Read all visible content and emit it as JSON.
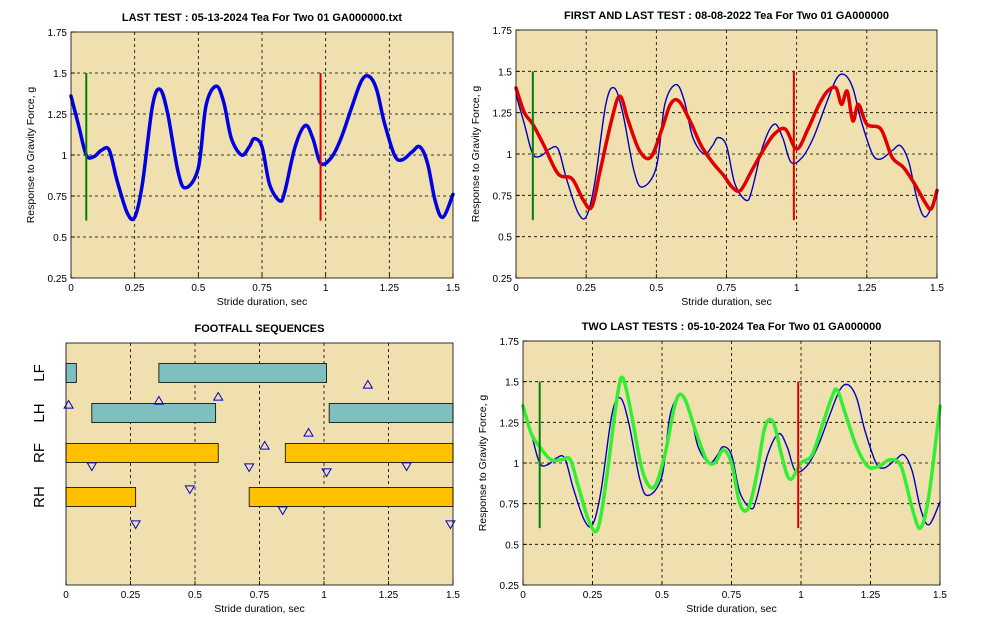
{
  "chart_data": [
    {
      "id": "last",
      "type": "line",
      "title": "LAST TEST : 05-13-2024 Tea For Two 01 GA000000.txt",
      "xlabel": "Stride duration, sec",
      "ylabel": "Response to Gravity Force, g",
      "xlim": [
        0,
        1.5
      ],
      "ylim": [
        0.25,
        1.75
      ],
      "xticks": [
        "0",
        "0.25",
        "0.5",
        "0.75",
        "1",
        "1.25",
        "1.5"
      ],
      "yticks": [
        "0.25",
        "0.5",
        "0.75",
        "1",
        "1.25",
        "1.5",
        "1.75"
      ],
      "grid": true,
      "markers": [
        {
          "x": 0.06,
          "y0": 0.6,
          "y1": 1.5,
          "color": "#008000"
        },
        {
          "x": 0.98,
          "y0": 0.6,
          "y1": 1.5,
          "color": "#e00000"
        }
      ],
      "series": [
        {
          "color": "#0000e0",
          "width": 3.5,
          "x": [
            0,
            0.03,
            0.06,
            0.09,
            0.12,
            0.15,
            0.18,
            0.22,
            0.25,
            0.28,
            0.32,
            0.35,
            0.38,
            0.42,
            0.45,
            0.5,
            0.53,
            0.57,
            0.6,
            0.63,
            0.67,
            0.7,
            0.72,
            0.75,
            0.78,
            0.82,
            0.84,
            0.88,
            0.92,
            0.95,
            0.98,
            1.02,
            1.06,
            1.1,
            1.14,
            1.17,
            1.2,
            1.23,
            1.27,
            1.3,
            1.34,
            1.37,
            1.4,
            1.43,
            1.46,
            1.5
          ],
          "y": [
            1.36,
            1.18,
            1.0,
            0.99,
            1.03,
            1.03,
            0.85,
            0.65,
            0.62,
            0.82,
            1.3,
            1.4,
            1.25,
            0.9,
            0.8,
            0.92,
            1.3,
            1.42,
            1.32,
            1.1,
            1.0,
            1.05,
            1.1,
            1.05,
            0.82,
            0.72,
            0.78,
            1.05,
            1.18,
            1.1,
            0.95,
            0.98,
            1.1,
            1.28,
            1.45,
            1.48,
            1.4,
            1.2,
            1.0,
            0.97,
            1.02,
            1.05,
            0.95,
            0.72,
            0.62,
            0.76
          ]
        }
      ]
    },
    {
      "id": "first-last",
      "type": "line",
      "title": "FIRST AND LAST TEST : 08-08-2022 Tea For Two 01 GA000000",
      "xlabel": "Stride duration, sec",
      "ylabel": "Response to Gravity Force, g",
      "xlim": [
        0,
        1.5
      ],
      "ylim": [
        0.25,
        1.75
      ],
      "xticks": [
        "0",
        "0.25",
        "0.5",
        "0.75",
        "1",
        "1.25",
        "1.5"
      ],
      "yticks": [
        "0.25",
        "0.5",
        "0.75",
        "1",
        "1.25",
        "1.5",
        "1.75"
      ],
      "grid": true,
      "markers": [
        {
          "x": 0.06,
          "y0": 0.6,
          "y1": 1.5,
          "color": "#008000"
        },
        {
          "x": 0.99,
          "y0": 0.6,
          "y1": 1.5,
          "color": "#e00000"
        }
      ],
      "series": [
        {
          "color": "#0000c0",
          "width": 1.4,
          "x": [
            0,
            0.03,
            0.06,
            0.09,
            0.12,
            0.15,
            0.18,
            0.22,
            0.25,
            0.28,
            0.32,
            0.35,
            0.38,
            0.42,
            0.45,
            0.5,
            0.53,
            0.57,
            0.6,
            0.63,
            0.67,
            0.7,
            0.72,
            0.75,
            0.78,
            0.82,
            0.84,
            0.88,
            0.92,
            0.95,
            0.98,
            1.02,
            1.06,
            1.1,
            1.14,
            1.17,
            1.2,
            1.23,
            1.27,
            1.3,
            1.34,
            1.37,
            1.4,
            1.43,
            1.46,
            1.5
          ],
          "y": [
            1.36,
            1.18,
            1.0,
            0.99,
            1.03,
            1.03,
            0.85,
            0.65,
            0.62,
            0.82,
            1.3,
            1.4,
            1.25,
            0.9,
            0.8,
            0.92,
            1.3,
            1.42,
            1.32,
            1.1,
            1.0,
            1.05,
            1.1,
            1.05,
            0.82,
            0.72,
            0.78,
            1.05,
            1.18,
            1.1,
            0.95,
            0.98,
            1.1,
            1.28,
            1.45,
            1.48,
            1.4,
            1.2,
            1.0,
            0.97,
            1.02,
            1.05,
            0.95,
            0.72,
            0.62,
            0.76
          ]
        },
        {
          "color": "#e00000",
          "width": 3.5,
          "x": [
            0,
            0.03,
            0.06,
            0.1,
            0.15,
            0.2,
            0.24,
            0.27,
            0.3,
            0.34,
            0.37,
            0.4,
            0.44,
            0.48,
            0.52,
            0.55,
            0.58,
            0.62,
            0.66,
            0.7,
            0.74,
            0.77,
            0.8,
            0.84,
            0.88,
            0.92,
            0.96,
            1.0,
            1.04,
            1.08,
            1.11,
            1.14,
            1.16,
            1.18,
            1.2,
            1.22,
            1.25,
            1.3,
            1.34,
            1.38,
            1.42,
            1.46,
            1.48,
            1.5
          ],
          "y": [
            1.4,
            1.25,
            1.18,
            1.05,
            0.88,
            0.85,
            0.72,
            0.68,
            0.9,
            1.2,
            1.35,
            1.2,
            1.02,
            0.98,
            1.15,
            1.3,
            1.32,
            1.2,
            1.05,
            0.95,
            0.87,
            0.8,
            0.78,
            0.9,
            1.02,
            1.12,
            1.15,
            1.03,
            1.15,
            1.3,
            1.38,
            1.4,
            1.3,
            1.38,
            1.2,
            1.3,
            1.18,
            1.15,
            0.98,
            0.92,
            0.82,
            0.7,
            0.67,
            0.78
          ]
        }
      ]
    },
    {
      "id": "footfall",
      "type": "bar",
      "title": "FOOTFALL SEQUENCES",
      "xlabel": "Stride duration, sec",
      "xlim": [
        0,
        1.5
      ],
      "xticks": [
        "0",
        "0.25",
        "0.5",
        "0.75",
        "1",
        "1.25",
        "1.5"
      ],
      "grid": true,
      "rows": [
        {
          "label": "LF",
          "color": "#7fbfbf",
          "segments": [
            [
              0,
              0.04
            ],
            [
              0.36,
              1.01
            ]
          ],
          "triangles": [
            {
              "x": 1.17,
              "dir": "up"
            }
          ]
        },
        {
          "label": "LH",
          "color": "#7fbfbf",
          "segments": [
            [
              0.1,
              0.58
            ],
            [
              1.02,
              1.5
            ]
          ],
          "triangles": [
            {
              "x": 0.01,
              "dir": "up"
            },
            {
              "x": 0.36,
              "dir": "up"
            },
            {
              "x": 0.59,
              "dir": "up"
            }
          ]
        },
        {
          "label": "RF",
          "color": "#ffc000",
          "segments": [
            [
              0,
              0.59
            ],
            [
              0.85,
              1.5
            ]
          ],
          "triangles": [
            {
              "x": 0.77,
              "dir": "up"
            },
            {
              "x": 0.94,
              "dir": "up"
            },
            {
              "x": 0.1,
              "dir": "down"
            },
            {
              "x": 0.71,
              "dir": "down"
            },
            {
              "x": 1.01,
              "dir": "down"
            },
            {
              "x": 1.32,
              "dir": "down"
            }
          ]
        },
        {
          "label": "RH",
          "color": "#ffc000",
          "segments": [
            [
              0,
              0.27
            ],
            [
              0.71,
              1.5
            ]
          ],
          "triangles": [
            {
              "x": 0.48,
              "dir": "down"
            },
            {
              "x": 0.27,
              "dir": "down"
            },
            {
              "x": 0.84,
              "dir": "down"
            },
            {
              "x": 1.49,
              "dir": "down"
            }
          ]
        }
      ]
    },
    {
      "id": "two-last",
      "type": "line",
      "title": "TWO LAST TESTS : 05-10-2024 Tea For Two 01 GA000000",
      "xlabel": "Stride duration, sec",
      "ylabel": "Response to Gravity Force, g",
      "xlim": [
        0,
        1.5
      ],
      "ylim": [
        0.25,
        1.75
      ],
      "xticks": [
        "0",
        "0.25",
        "0.5",
        "0.75",
        "1",
        "1.25",
        "1.5"
      ],
      "yticks": [
        "0.25",
        "0.5",
        "0.75",
        "1",
        "1.25",
        "1.5",
        "1.75"
      ],
      "grid": true,
      "markers": [
        {
          "x": 0.06,
          "y0": 0.6,
          "y1": 1.5,
          "color": "#008000"
        },
        {
          "x": 0.99,
          "y0": 0.6,
          "y1": 1.5,
          "color": "#e00000"
        }
      ],
      "series": [
        {
          "color": "#0000c0",
          "width": 1.4,
          "x": [
            0,
            0.03,
            0.06,
            0.09,
            0.12,
            0.15,
            0.18,
            0.22,
            0.25,
            0.28,
            0.32,
            0.35,
            0.38,
            0.42,
            0.45,
            0.5,
            0.53,
            0.57,
            0.6,
            0.63,
            0.67,
            0.7,
            0.72,
            0.75,
            0.78,
            0.82,
            0.84,
            0.88,
            0.92,
            0.95,
            0.98,
            1.02,
            1.06,
            1.1,
            1.14,
            1.17,
            1.2,
            1.23,
            1.27,
            1.3,
            1.34,
            1.37,
            1.4,
            1.43,
            1.46,
            1.5
          ],
          "y": [
            1.36,
            1.18,
            1.0,
            0.99,
            1.03,
            1.03,
            0.85,
            0.65,
            0.62,
            0.82,
            1.3,
            1.4,
            1.25,
            0.9,
            0.8,
            0.92,
            1.3,
            1.42,
            1.32,
            1.1,
            1.0,
            1.05,
            1.1,
            1.05,
            0.82,
            0.72,
            0.78,
            1.05,
            1.18,
            1.1,
            0.95,
            0.98,
            1.1,
            1.28,
            1.45,
            1.48,
            1.4,
            1.2,
            1.0,
            0.97,
            1.02,
            1.05,
            0.95,
            0.72,
            0.62,
            0.76
          ]
        },
        {
          "color": "#33ee33",
          "width": 3.5,
          "x": [
            0,
            0.03,
            0.06,
            0.1,
            0.14,
            0.17,
            0.2,
            0.24,
            0.27,
            0.3,
            0.34,
            0.36,
            0.39,
            0.43,
            0.47,
            0.51,
            0.55,
            0.58,
            0.62,
            0.66,
            0.69,
            0.72,
            0.75,
            0.78,
            0.81,
            0.84,
            0.87,
            0.9,
            0.93,
            0.96,
            1.0,
            1.04,
            1.08,
            1.11,
            1.13,
            1.16,
            1.2,
            1.24,
            1.28,
            1.32,
            1.36,
            1.4,
            1.43,
            1.46,
            1.5
          ],
          "y": [
            1.35,
            1.18,
            1.1,
            1.02,
            1.02,
            1.02,
            0.85,
            0.63,
            0.6,
            0.9,
            1.42,
            1.52,
            1.3,
            0.95,
            0.85,
            1.05,
            1.38,
            1.4,
            1.2,
            1.02,
            1.0,
            1.08,
            1.0,
            0.75,
            0.72,
            0.92,
            1.22,
            1.25,
            1.05,
            0.9,
            1.0,
            1.05,
            1.25,
            1.4,
            1.45,
            1.3,
            1.1,
            0.98,
            0.98,
            1.02,
            0.98,
            0.72,
            0.6,
            0.8,
            1.35
          ]
        }
      ]
    }
  ]
}
